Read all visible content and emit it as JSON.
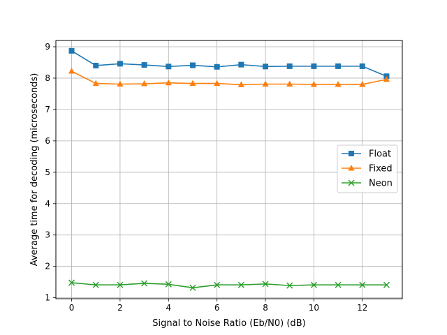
{
  "chart_data": {
    "type": "line",
    "title": "",
    "xlabel": "Signal to Noise Ratio (Eb/N0) (dB)",
    "ylabel": "Average time for decoding (microseconds)",
    "xlim": [
      -0.65,
      13.65
    ],
    "ylim": [
      0.97,
      9.2
    ],
    "xticks": [
      0,
      2,
      4,
      6,
      8,
      10,
      12
    ],
    "yticks": [
      1,
      2,
      3,
      4,
      5,
      6,
      7,
      8,
      9
    ],
    "grid": true,
    "legend_position": "center-right",
    "x": [
      0,
      1,
      2,
      3,
      4,
      5,
      6,
      7,
      8,
      9,
      10,
      11,
      12,
      13
    ],
    "series": [
      {
        "name": "Float",
        "color": "#1f77b4",
        "marker": "square",
        "values": [
          8.87,
          8.4,
          8.46,
          8.42,
          8.37,
          8.41,
          8.36,
          8.43,
          8.37,
          8.38,
          8.38,
          8.38,
          8.38,
          8.06
        ]
      },
      {
        "name": "Fixed",
        "color": "#ff7f0e",
        "marker": "triangle",
        "values": [
          8.22,
          7.83,
          7.81,
          7.82,
          7.85,
          7.83,
          7.83,
          7.79,
          7.81,
          7.81,
          7.8,
          7.8,
          7.8,
          7.96
        ]
      },
      {
        "name": "Neon",
        "color": "#2ca02c",
        "marker": "x",
        "values": [
          1.48,
          1.41,
          1.41,
          1.46,
          1.43,
          1.32,
          1.41,
          1.41,
          1.44,
          1.39,
          1.41,
          1.41,
          1.41,
          1.41
        ]
      }
    ]
  }
}
